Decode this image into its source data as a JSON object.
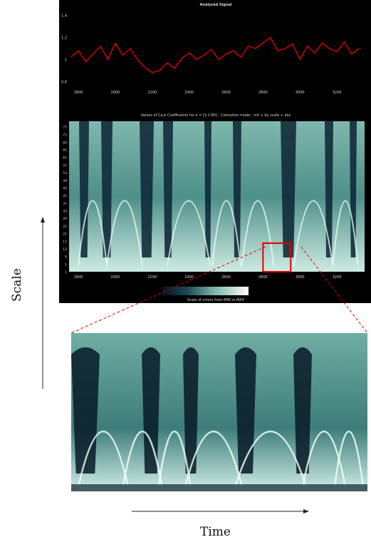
{
  "signal_title": "Analyzed Signal",
  "cwt_title": "Values of Ca,b Coefficients for a = [1:1:80] - Coloration mode : init + by scale + abs",
  "colorbar_label": "Scale of colors from MIN to MAX",
  "scale_axis_label": "Scale",
  "time_axis_label": "Time",
  "colors": {
    "signal": "#e00000",
    "highlight": "#e00000",
    "background": "#000000",
    "ink": "#111111"
  },
  "chart_data": [
    {
      "type": "line",
      "title": "Analyzed Signal",
      "x_ticks": [
        "1800",
        "2000",
        "2200",
        "2400",
        "2600",
        "2800",
        "3000",
        "3200"
      ],
      "y_ticks": [
        "0.8",
        "1",
        "1.2",
        "1.4"
      ],
      "xlim": [
        1750,
        3350
      ],
      "ylim": [
        0.75,
        1.45
      ],
      "series": [
        {
          "x": [
            1760,
            1800,
            1840,
            1880,
            1920,
            1960,
            2000,
            2040,
            2080,
            2120,
            2160,
            2200,
            2240,
            2280,
            2320,
            2360,
            2400,
            2440,
            2480,
            2520,
            2560,
            2600,
            2640,
            2680,
            2720,
            2760,
            2800,
            2840,
            2880,
            2920,
            2960,
            3000,
            3040,
            3080,
            3120,
            3160,
            3200,
            3240,
            3280,
            3320
          ],
          "y": [
            1.02,
            1.08,
            0.98,
            1.05,
            1.12,
            1.0,
            1.15,
            1.04,
            1.1,
            1.0,
            0.93,
            0.88,
            0.9,
            0.97,
            0.92,
            1.01,
            1.06,
            1.0,
            1.04,
            1.09,
            1.0,
            1.05,
            1.08,
            1.02,
            1.12,
            1.1,
            1.15,
            1.2,
            1.08,
            1.1,
            1.14,
            1.0,
            1.12,
            1.06,
            1.15,
            1.1,
            1.07,
            1.16,
            1.05,
            1.1
          ]
        }
      ]
    },
    {
      "type": "heatmap",
      "title": "Values of Ca,b Coefficients for a = [1:1:80] - Coloration mode : init + by scale + abs",
      "x_ticks": [
        "1800",
        "2000",
        "2200",
        "2400",
        "2600",
        "2800",
        "3000",
        "3200"
      ],
      "y_ticks": [
        "1",
        "5",
        "9",
        "13",
        "17",
        "21",
        "25",
        "29",
        "33",
        "37",
        "41",
        "45",
        "49",
        "53",
        "57",
        "61",
        "65",
        "69",
        "73",
        "77"
      ],
      "xlim": [
        1750,
        3350
      ],
      "ylim": [
        1,
        80
      ],
      "highlighted_region": {
        "x": [
          2800,
          2950
        ],
        "y": [
          1,
          16
        ]
      }
    }
  ]
}
